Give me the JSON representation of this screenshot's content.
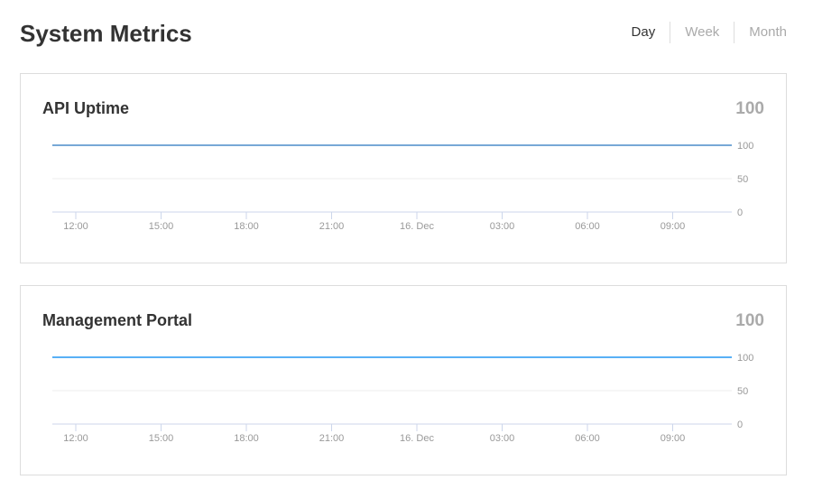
{
  "header": {
    "title": "System Metrics",
    "ranges": [
      "Day",
      "Week",
      "Month"
    ],
    "selected": "Day"
  },
  "cards": [
    {
      "title": "API Uptime",
      "current_value": "100",
      "line_color": "#4a8cc9"
    },
    {
      "title": "Management Portal",
      "current_value": "100",
      "line_color": "#2196f3"
    }
  ],
  "chart_data": [
    {
      "type": "line",
      "title": "API Uptime",
      "x_ticks": [
        "12:00",
        "15:00",
        "18:00",
        "21:00",
        "16. Dec",
        "03:00",
        "06:00",
        "09:00"
      ],
      "y_ticks": [
        "0",
        "50",
        "100"
      ],
      "ylim": [
        0,
        100
      ],
      "grid": true,
      "series": [
        {
          "values": [
            100,
            100
          ]
        }
      ]
    },
    {
      "type": "line",
      "title": "Management Portal",
      "x_ticks": [
        "12:00",
        "15:00",
        "18:00",
        "21:00",
        "16. Dec",
        "03:00",
        "06:00",
        "09:00"
      ],
      "y_ticks": [
        "0",
        "50",
        "100"
      ],
      "ylim": [
        0,
        100
      ],
      "grid": true,
      "series": [
        {
          "values": [
            100,
            100
          ]
        }
      ]
    }
  ]
}
